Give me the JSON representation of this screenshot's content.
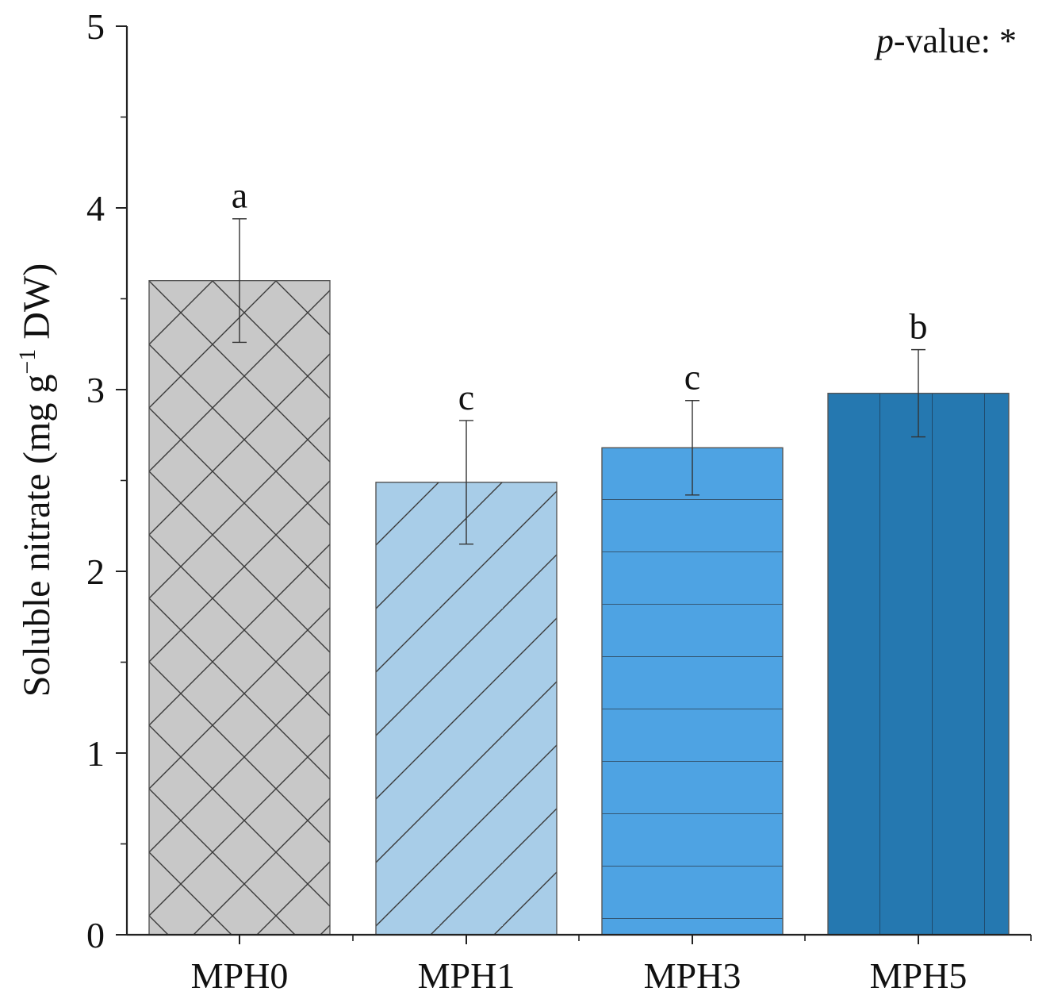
{
  "chart_data": {
    "type": "bar",
    "categories": [
      "MPH0",
      "MPH1",
      "MPH3",
      "MPH5"
    ],
    "values": [
      3.6,
      2.49,
      2.68,
      2.98
    ],
    "errors": [
      0.34,
      0.34,
      0.26,
      0.24
    ],
    "significance_letters": [
      "a",
      "c",
      "c",
      "b"
    ],
    "ylabel_main": "Soluble nitrate (mg g",
    "ylabel_sup": "−1",
    "ylabel_end": " DW)",
    "ylim": [
      0,
      5
    ],
    "yticks": [
      "0",
      "1",
      "2",
      "3",
      "4",
      "5"
    ],
    "annotation_italic": "p",
    "annotation_rest": "-value: *",
    "colors": [
      "#c8c8c8",
      "#a8cde8",
      "#4ea3e3",
      "#2578b0"
    ],
    "patterns": [
      "crosshatch",
      "diagonal",
      "horizontal",
      "vertical"
    ],
    "pattern_stroke": "#3a3a3a"
  }
}
